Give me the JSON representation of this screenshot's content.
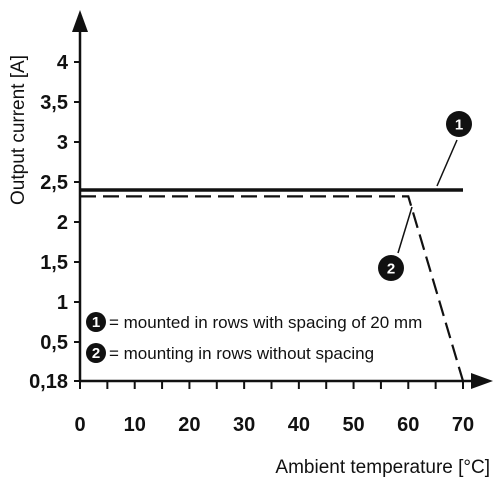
{
  "chart_data": {
    "type": "line",
    "xlabel": "Ambient temperature [°C]",
    "ylabel": "Output current [A]",
    "xlim": [
      0,
      70
    ],
    "x_ticks": [
      "0",
      "10",
      "20",
      "30",
      "40",
      "50",
      "60",
      "70"
    ],
    "y_ticks": [
      {
        "value": 0.18,
        "label": "0,18"
      },
      {
        "value": 0.5,
        "label": "0,5"
      },
      {
        "value": 1,
        "label": "1"
      },
      {
        "value": 1.5,
        "label": "1,5"
      },
      {
        "value": 2,
        "label": "2"
      },
      {
        "value": 2.5,
        "label": "2,5"
      },
      {
        "value": 3,
        "label": "3"
      },
      {
        "value": 3.5,
        "label": "3,5"
      },
      {
        "value": 4,
        "label": "4"
      }
    ],
    "series": [
      {
        "marker": "1",
        "style": "solid",
        "points": [
          {
            "x": 0,
            "y": 2.4
          },
          {
            "x": 70,
            "y": 2.4
          }
        ]
      },
      {
        "marker": "2",
        "style": "dashed",
        "points": [
          {
            "x": 0,
            "y": 2.32
          },
          {
            "x": 60,
            "y": 2.32
          },
          {
            "x": 70,
            "y": 0.18
          }
        ]
      }
    ],
    "legend": [
      {
        "marker": "1",
        "text": "= mounted in rows with spacing of 20 mm"
      },
      {
        "marker": "2",
        "text": "= mounting in rows without spacing"
      }
    ],
    "grid": false,
    "colors": {
      "line": "#111111",
      "background": "#ffffff"
    }
  }
}
